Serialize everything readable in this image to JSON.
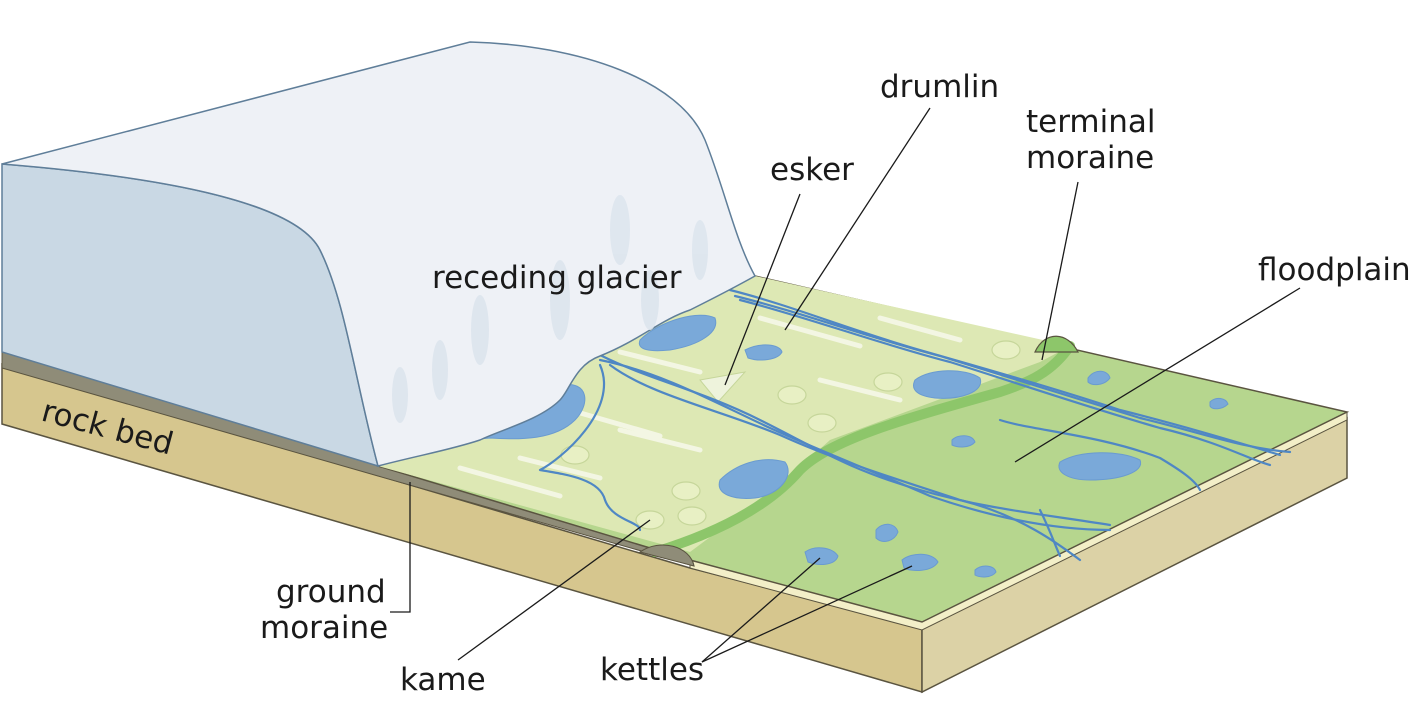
{
  "labels": {
    "drumlin": "drumlin",
    "terminal_moraine_line1": "terminal",
    "terminal_moraine_line2": "moraine",
    "esker": "esker",
    "floodplain": "floodplain",
    "receding_glacier": "receding glacier",
    "rock_bed": "rock bed",
    "ground_moraine_line1": "ground",
    "ground_moraine_line2": "moraine",
    "kame": "kame",
    "kettles": "kettles"
  },
  "colors": {
    "ice_top": "#eef1f6",
    "ice_side": "#c9d8e4",
    "outwash_light": "#dde8b4",
    "plain_green": "#b6d68e",
    "moraine_ridge": "#8dc66a",
    "water": "#7aa9d9",
    "rock_bed": "#d6c68e",
    "rock_bed_side": "#dcd2a6",
    "till_layer": "#8f8c78"
  }
}
